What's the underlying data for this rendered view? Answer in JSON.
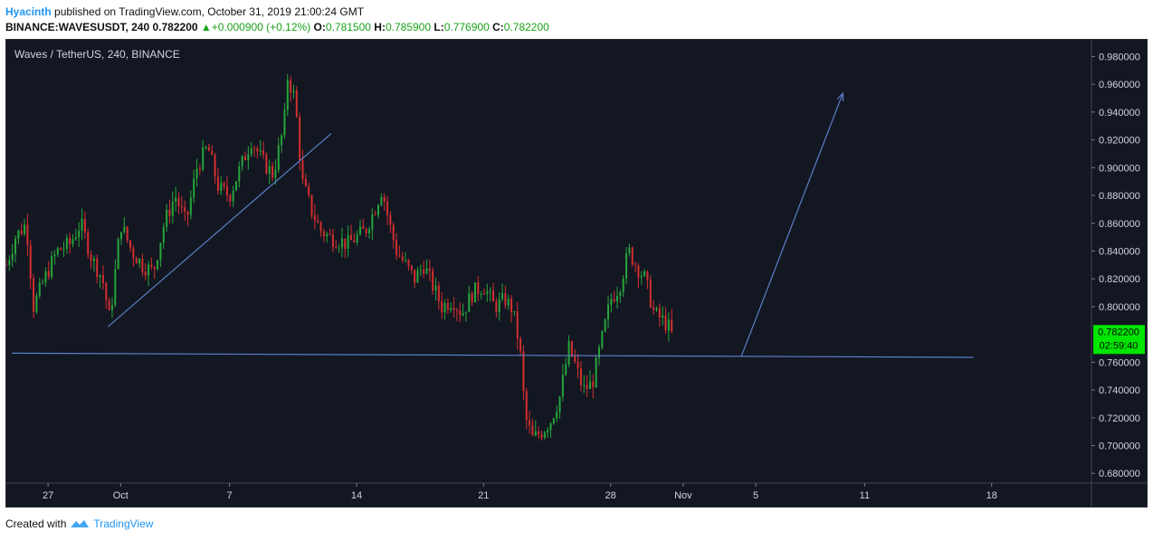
{
  "header": {
    "author": "Hyacinth",
    "published": "published on TradingView.com, October 31, 2019 21:00:24 GMT",
    "symbol": "BINANCE:WAVESUSDT, 240",
    "last": "0.782200",
    "change_arrow": "▲",
    "change": "+0.000900 (+0.12%)",
    "o_label": "O:",
    "o": "0.781500",
    "h_label": "H:",
    "h": "0.785900",
    "l_label": "L:",
    "l": "0.776900",
    "c_label": "C:",
    "c": "0.782200"
  },
  "legend": {
    "title": "Waves / TetherUS, 240, BINANCE"
  },
  "price_tag": {
    "value": "0.782200",
    "countdown": "02:59:40",
    "color": "#00e600"
  },
  "footer": {
    "created_with": "Created with",
    "brand": "TradingView"
  },
  "colors": {
    "background": "#131722",
    "up": "#26a63a",
    "down": "#d32f2f",
    "drawing": "#5b7fc7",
    "axis_text": "#d1d4dc"
  },
  "chart_data": {
    "type": "candlestick",
    "title": "Waves / TetherUS, 240, BINANCE",
    "interval": "240",
    "y_ticks": [
      "0.980000",
      "0.960000",
      "0.940000",
      "0.920000",
      "0.900000",
      "0.880000",
      "0.860000",
      "0.840000",
      "0.820000",
      "0.800000",
      "0.760000",
      "0.740000",
      "0.720000",
      "0.700000",
      "0.680000"
    ],
    "ylim": [
      0.673,
      0.992
    ],
    "x_ticks": [
      {
        "label": "27",
        "day": 0
      },
      {
        "label": "Oct",
        "day": 4
      },
      {
        "label": "7",
        "day": 10
      },
      {
        "label": "14",
        "day": 17
      },
      {
        "label": "21",
        "day": 24
      },
      {
        "label": "28",
        "day": 31
      },
      {
        "label": "Nov",
        "day": 35
      },
      {
        "label": "5",
        "day": 39
      },
      {
        "label": "11",
        "day": 45
      },
      {
        "label": "18",
        "day": 52
      }
    ],
    "x_start_day": -2.3,
    "x_end_day": 57.5,
    "bars_per_day": 6,
    "close_path": [
      [
        -2.3,
        0.83
      ],
      [
        -1.8,
        0.85
      ],
      [
        -1.2,
        0.86
      ],
      [
        -0.8,
        0.8
      ],
      [
        -0.2,
        0.82
      ],
      [
        0.5,
        0.84
      ],
      [
        1.2,
        0.845
      ],
      [
        1.8,
        0.86
      ],
      [
        2.4,
        0.835
      ],
      [
        3.0,
        0.82
      ],
      [
        3.4,
        0.79
      ],
      [
        4.0,
        0.86
      ],
      [
        4.6,
        0.84
      ],
      [
        5.2,
        0.83
      ],
      [
        5.8,
        0.825
      ],
      [
        6.4,
        0.86
      ],
      [
        7.0,
        0.88
      ],
      [
        7.6,
        0.86
      ],
      [
        8.2,
        0.9
      ],
      [
        8.8,
        0.915
      ],
      [
        9.4,
        0.885
      ],
      [
        10.0,
        0.88
      ],
      [
        10.6,
        0.9
      ],
      [
        11.2,
        0.92
      ],
      [
        11.8,
        0.905
      ],
      [
        12.4,
        0.895
      ],
      [
        13.0,
        0.93
      ],
      [
        13.2,
        0.965
      ],
      [
        13.6,
        0.95
      ],
      [
        14.0,
        0.89
      ],
      [
        14.5,
        0.87
      ],
      [
        15.0,
        0.855
      ],
      [
        15.5,
        0.85
      ],
      [
        16.0,
        0.848
      ],
      [
        16.5,
        0.845
      ],
      [
        17.0,
        0.85
      ],
      [
        17.5,
        0.855
      ],
      [
        18.0,
        0.87
      ],
      [
        18.4,
        0.885
      ],
      [
        18.8,
        0.86
      ],
      [
        19.2,
        0.84
      ],
      [
        19.7,
        0.83
      ],
      [
        20.2,
        0.82
      ],
      [
        20.7,
        0.83
      ],
      [
        21.2,
        0.815
      ],
      [
        21.7,
        0.8
      ],
      [
        22.3,
        0.805
      ],
      [
        22.8,
        0.795
      ],
      [
        23.4,
        0.81
      ],
      [
        24.0,
        0.815
      ],
      [
        24.6,
        0.8
      ],
      [
        25.2,
        0.805
      ],
      [
        25.6,
        0.798
      ],
      [
        26.0,
        0.77
      ],
      [
        26.3,
        0.72
      ],
      [
        26.7,
        0.705
      ],
      [
        27.2,
        0.71
      ],
      [
        27.7,
        0.718
      ],
      [
        28.2,
        0.735
      ],
      [
        28.7,
        0.77
      ],
      [
        29.0,
        0.76
      ],
      [
        29.5,
        0.74
      ],
      [
        30.0,
        0.745
      ],
      [
        30.5,
        0.775
      ],
      [
        31.0,
        0.805
      ],
      [
        31.5,
        0.815
      ],
      [
        32.0,
        0.84
      ],
      [
        32.4,
        0.83
      ],
      [
        32.9,
        0.82
      ],
      [
        33.4,
        0.795
      ],
      [
        33.9,
        0.79
      ],
      [
        34.4,
        0.782
      ]
    ],
    "volatility": 0.009,
    "drawings": [
      {
        "type": "trendline",
        "from": [
          -2.0,
          0.7665
        ],
        "to": [
          51.0,
          0.7635
        ]
      },
      {
        "type": "trendline",
        "from": [
          3.3,
          0.7855
        ],
        "to": [
          15.6,
          0.9245
        ]
      },
      {
        "type": "arrow",
        "from": [
          38.2,
          0.764
        ],
        "to": [
          43.8,
          0.9535
        ]
      }
    ]
  }
}
